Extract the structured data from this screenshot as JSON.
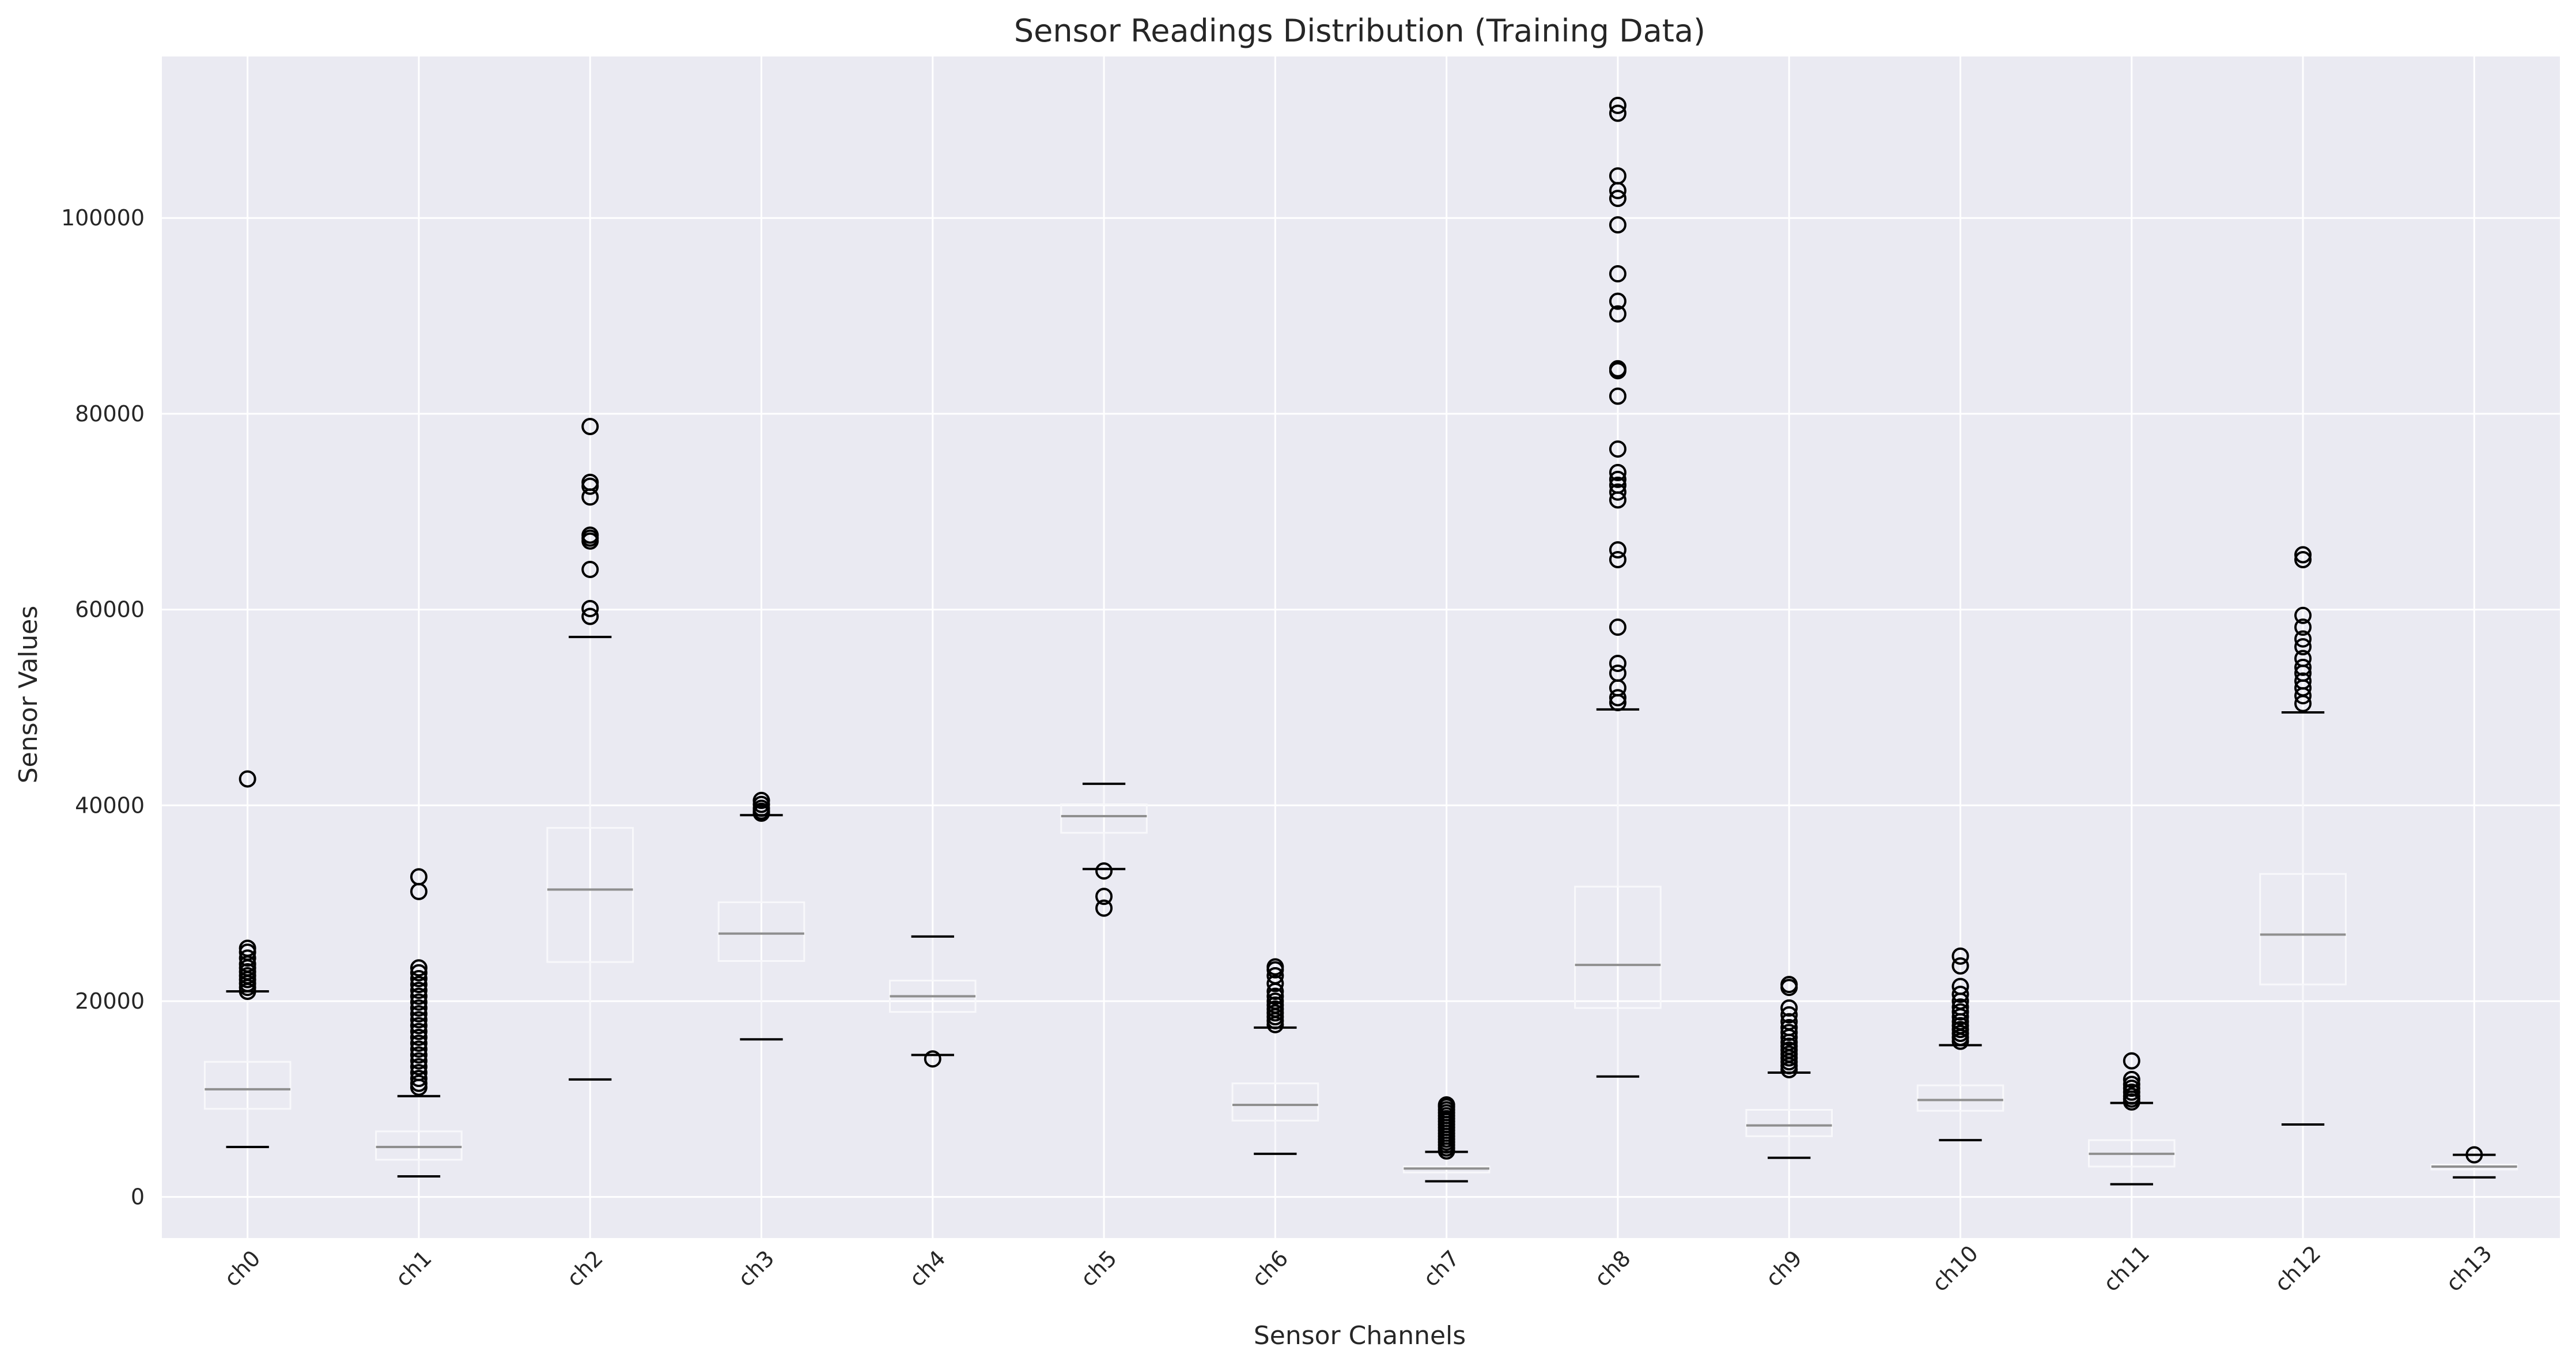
{
  "chart_data": {
    "type": "box",
    "title": "Sensor Readings Distribution (Training Data)",
    "xlabel": "Sensor Channels",
    "ylabel": "Sensor Values",
    "ylim": [
      -4200,
      116500
    ],
    "yticks": [
      0,
      20000,
      40000,
      60000,
      80000,
      100000
    ],
    "grid": true,
    "categories": [
      "ch0",
      "ch1",
      "ch2",
      "ch3",
      "ch4",
      "ch5",
      "ch6",
      "ch7",
      "ch8",
      "ch9",
      "ch10",
      "ch11",
      "ch12",
      "ch13"
    ],
    "boxes": [
      {
        "name": "ch0",
        "whisker_low": 5100,
        "q1": 9000,
        "median": 11000,
        "q3": 13800,
        "whisker_high": 21000,
        "outliers": [
          21000,
          21400,
          21800,
          22200,
          22600,
          23000,
          23400,
          23800,
          24400,
          25000,
          25400,
          42700
        ]
      },
      {
        "name": "ch1",
        "whisker_low": 2100,
        "q1": 3800,
        "median": 5100,
        "q3": 6700,
        "whisker_high": 10300,
        "outliers": [
          11200,
          11600,
          12100,
          12700,
          13300,
          13900,
          14500,
          15100,
          15700,
          16300,
          16900,
          17500,
          18100,
          18700,
          19300,
          19900,
          20500,
          21100,
          21700,
          22300,
          22900,
          23400,
          31200,
          32700
        ]
      },
      {
        "name": "ch2",
        "whisker_low": 12000,
        "q1": 24000,
        "median": 31400,
        "q3": 37700,
        "whisker_high": 57200,
        "outliers": [
          59300,
          60100,
          64100,
          67000,
          67300,
          67600,
          71500,
          72600,
          73000,
          78700
        ]
      },
      {
        "name": "ch3",
        "whisker_low": 16100,
        "q1": 24100,
        "median": 26900,
        "q3": 30100,
        "whisker_high": 39000,
        "outliers": [
          39200,
          39400,
          39700,
          40100,
          40500
        ]
      },
      {
        "name": "ch4",
        "whisker_low": 14500,
        "q1": 18900,
        "median": 20500,
        "q3": 22100,
        "whisker_high": 26600,
        "outliers": [
          14100
        ]
      },
      {
        "name": "ch5",
        "whisker_low": 33500,
        "q1": 37200,
        "median": 38900,
        "q3": 40100,
        "whisker_high": 42200,
        "outliers": [
          33300,
          30700,
          29500
        ]
      },
      {
        "name": "ch6",
        "whisker_low": 4400,
        "q1": 7800,
        "median": 9400,
        "q3": 11600,
        "whisker_high": 17300,
        "outliers": [
          17600,
          18000,
          18400,
          18800,
          19200,
          19600,
          20000,
          20500,
          21000,
          21800,
          22600,
          23200,
          23500
        ]
      },
      {
        "name": "ch7",
        "whisker_low": 1600,
        "q1": 2500,
        "median": 2900,
        "q3": 3100,
        "whisker_high": 4600,
        "outliers": [
          4700,
          5000,
          5300,
          5600,
          5900,
          6200,
          6500,
          6800,
          7100,
          7400,
          7700,
          8000,
          8300,
          8600,
          8900,
          9200,
          9400
        ]
      },
      {
        "name": "ch8",
        "whisker_low": 12300,
        "q1": 19300,
        "median": 23700,
        "q3": 31700,
        "whisker_high": 49800,
        "outliers": [
          50500,
          51000,
          52000,
          53500,
          54500,
          58200,
          65100,
          66100,
          71200,
          72000,
          72700,
          73300,
          74000,
          76400,
          81800,
          84400,
          84600,
          90200,
          91500,
          94300,
          99300,
          102000,
          102800,
          104300,
          110700,
          111500
        ]
      },
      {
        "name": "ch9",
        "whisker_low": 4000,
        "q1": 6200,
        "median": 7300,
        "q3": 8900,
        "whisker_high": 12700,
        "outliers": [
          13000,
          13400,
          13800,
          14200,
          14600,
          15000,
          15400,
          15800,
          16300,
          16800,
          17300,
          17900,
          18600,
          19300,
          21400,
          21700
        ]
      },
      {
        "name": "ch10",
        "whisker_low": 5800,
        "q1": 8800,
        "median": 9900,
        "q3": 11400,
        "whisker_high": 15500,
        "outliers": [
          15900,
          16300,
          16700,
          17100,
          17500,
          17900,
          18400,
          18900,
          19400,
          20000,
          20700,
          21500,
          23600,
          24600
        ]
      },
      {
        "name": "ch11",
        "whisker_low": 1300,
        "q1": 3100,
        "median": 4400,
        "q3": 5800,
        "whisker_high": 9600,
        "outliers": [
          9700,
          10000,
          10300,
          10700,
          11100,
          11500,
          12000,
          13900
        ]
      },
      {
        "name": "ch12",
        "whisker_low": 7400,
        "q1": 21700,
        "median": 26800,
        "q3": 33000,
        "whisker_high": 49500,
        "outliers": [
          50400,
          51200,
          52000,
          52700,
          53500,
          54100,
          55000,
          56200,
          57000,
          58200,
          59400,
          65100,
          65600
        ]
      },
      {
        "name": "ch13",
        "whisker_low": 2000,
        "q1": 2800,
        "median": 3100,
        "q3": 3300,
        "whisker_high": 4300,
        "outliers": [
          4300
        ]
      }
    ],
    "colors": {
      "background": "#eaeaf2",
      "grid": "#ffffff",
      "box_edge": "#f8f8fb",
      "median": "#8f8f8f",
      "whisker_cap": "#000000",
      "outlier": "#000000",
      "text": "#262626"
    }
  }
}
